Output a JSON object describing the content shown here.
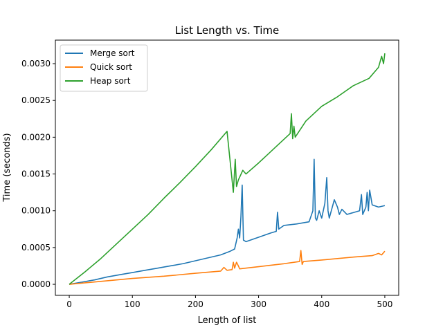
{
  "chart_data": {
    "type": "line",
    "title": "List Length vs. Time",
    "xlabel": "Length of list",
    "ylabel": "Time (seconds)",
    "xlim": [
      -22,
      522
    ],
    "ylim": [
      -0.00015,
      0.00332
    ],
    "xticks": [
      {
        "value": 0,
        "label": "0"
      },
      {
        "value": 100,
        "label": "100"
      },
      {
        "value": 200,
        "label": "200"
      },
      {
        "value": 300,
        "label": "300"
      },
      {
        "value": 400,
        "label": "400"
      },
      {
        "value": 500,
        "label": "500"
      }
    ],
    "yticks": [
      {
        "value": 0.0,
        "label": "0.0000"
      },
      {
        "value": 0.0005,
        "label": "0.0005"
      },
      {
        "value": 0.001,
        "label": "0.0010"
      },
      {
        "value": 0.0015,
        "label": "0.0015"
      },
      {
        "value": 0.002,
        "label": "0.0020"
      },
      {
        "value": 0.0025,
        "label": "0.0025"
      },
      {
        "value": 0.003,
        "label": "0.0030"
      }
    ],
    "grid": false,
    "legend_position": "top-left",
    "series": [
      {
        "name": "Merge sort",
        "color": "#1f77b4",
        "x": [
          0,
          20,
          40,
          60,
          80,
          100,
          120,
          140,
          160,
          180,
          200,
          220,
          240,
          255,
          262,
          266,
          268,
          270,
          272,
          274,
          276,
          280,
          300,
          320,
          328,
          330,
          332,
          340,
          360,
          380,
          386,
          388,
          390,
          392,
          396,
          400,
          405,
          408,
          410,
          412,
          420,
          425,
          428,
          432,
          440,
          460,
          463,
          465,
          470,
          472,
          474,
          476,
          480,
          490,
          500
        ],
        "y": [
          0.0,
          3e-05,
          6e-05,
          0.0001,
          0.00013,
          0.00016,
          0.00019,
          0.00022,
          0.00025,
          0.00028,
          0.00032,
          0.00036,
          0.0004,
          0.00045,
          0.00048,
          0.00063,
          0.00075,
          0.00063,
          0.00092,
          0.00135,
          0.0006,
          0.00058,
          0.00064,
          0.0007,
          0.00072,
          0.00098,
          0.00075,
          0.0008,
          0.00082,
          0.00085,
          0.001,
          0.0017,
          0.0009,
          0.00087,
          0.001,
          0.0009,
          0.0011,
          0.00145,
          0.001,
          0.0009,
          0.00115,
          0.00105,
          0.00095,
          0.00102,
          0.00095,
          0.001,
          0.00122,
          0.00095,
          0.00105,
          0.00125,
          0.001,
          0.00128,
          0.00108,
          0.00105,
          0.00107
        ]
      },
      {
        "name": "Quick sort",
        "color": "#ff7f0e",
        "x": [
          0,
          50,
          100,
          150,
          200,
          240,
          245,
          250,
          258,
          260,
          262,
          265,
          268,
          270,
          300,
          340,
          365,
          367,
          369,
          371,
          400,
          450,
          480,
          490,
          495,
          500
        ],
        "y": [
          0.0,
          4e-05,
          8e-05,
          0.00011,
          0.00015,
          0.00018,
          0.00023,
          0.00019,
          0.0002,
          0.0003,
          0.00022,
          0.0003,
          0.00025,
          0.00021,
          0.00024,
          0.00028,
          0.00031,
          0.00046,
          0.00027,
          0.00031,
          0.00033,
          0.00037,
          0.00039,
          0.00042,
          0.0004,
          0.00045
        ]
      },
      {
        "name": "Heap sort",
        "color": "#2ca02c",
        "x": [
          0,
          25,
          50,
          75,
          100,
          125,
          150,
          175,
          200,
          225,
          250,
          260,
          263,
          265,
          268,
          275,
          280,
          300,
          325,
          350,
          352,
          354,
          356,
          358,
          375,
          400,
          425,
          450,
          475,
          490,
          495,
          498,
          500
        ],
        "y": [
          0.0,
          0.00017,
          0.00035,
          0.00055,
          0.00075,
          0.00095,
          0.00117,
          0.00138,
          0.0016,
          0.00183,
          0.00208,
          0.00125,
          0.0017,
          0.00133,
          0.00142,
          0.00155,
          0.0015,
          0.00165,
          0.00185,
          0.00205,
          0.00232,
          0.00198,
          0.00215,
          0.002,
          0.00222,
          0.00242,
          0.00255,
          0.0027,
          0.0028,
          0.00295,
          0.0031,
          0.003,
          0.00314
        ]
      }
    ]
  }
}
